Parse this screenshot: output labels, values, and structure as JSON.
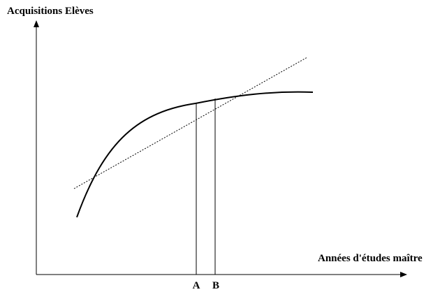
{
  "labels": {
    "y_axis": "Acquisitions Elèves",
    "x_axis": "Années d'études maître",
    "marker_a": "A",
    "marker_b": "B"
  },
  "colors": {
    "ink": "#000000",
    "background": "#ffffff"
  }
}
